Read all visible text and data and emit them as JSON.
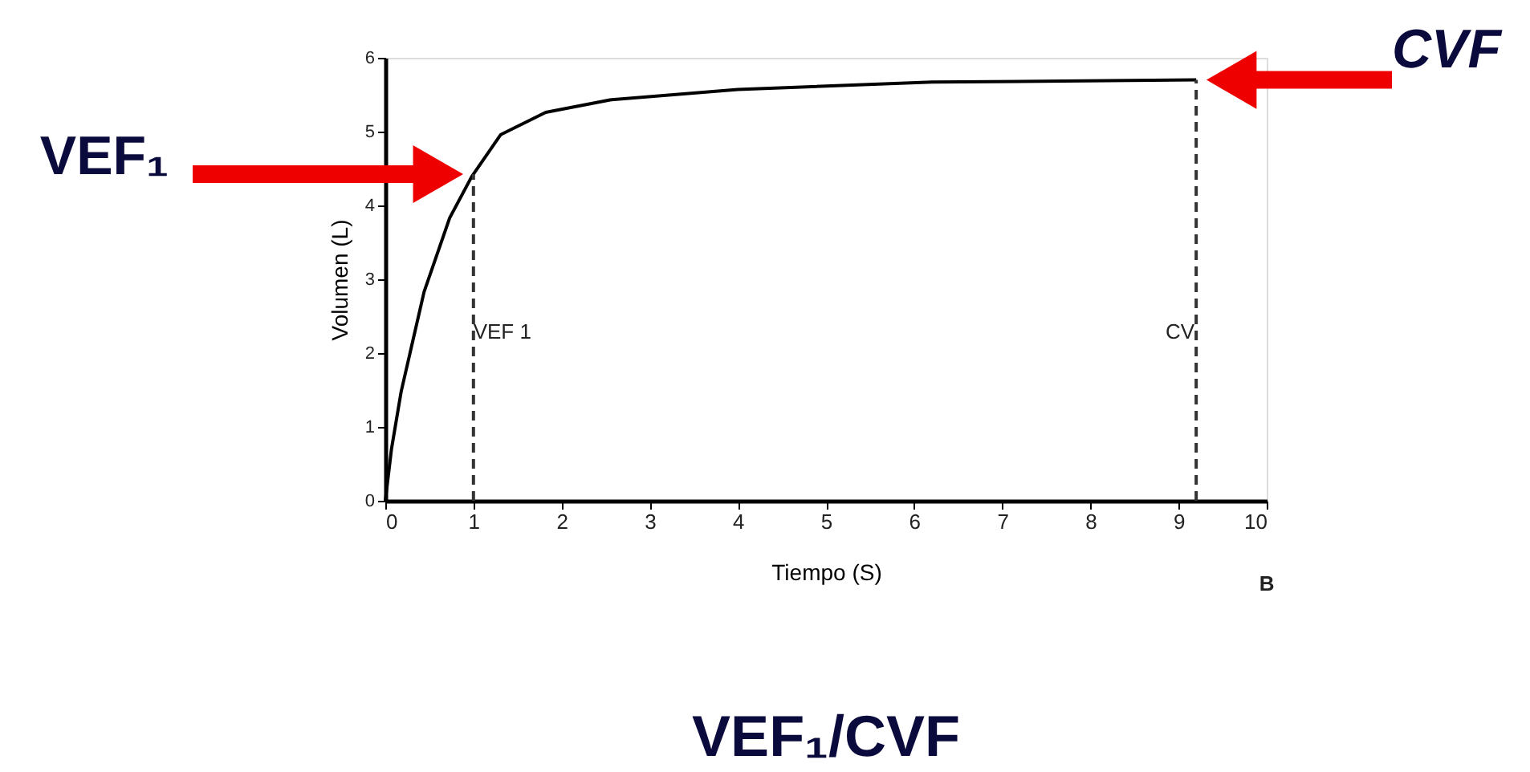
{
  "chart_data": {
    "type": "line",
    "title": "VEF₁/CVF",
    "xlabel": "Tiempo (S)",
    "ylabel": "Volumen (L)",
    "x": [
      0,
      0.07,
      0.18,
      0.44,
      0.73,
      0.98,
      1.31,
      1.82,
      2.55,
      4.0,
      6.2,
      9.2
    ],
    "series": [
      {
        "color": "#000000",
        "values": [
          0,
          0.7,
          1.48,
          2.83,
          3.83,
          4.39,
          4.96,
          5.26,
          5.43,
          5.57,
          5.67,
          5.7
        ]
      }
    ],
    "xlim": [
      0,
      10
    ],
    "ylim": [
      0,
      6
    ],
    "xticks": [
      0,
      1,
      2,
      3,
      4,
      5,
      6,
      7,
      8,
      9,
      10
    ],
    "yticks": [
      0,
      1,
      2,
      3,
      4,
      5,
      6
    ],
    "grid": false,
    "marker": "none",
    "line_style": "solid",
    "ref_lines": [
      {
        "axis": "x",
        "value": 1,
        "label": "VEF 1",
        "line_style": "dashed",
        "color": "#333333"
      },
      {
        "axis": "x",
        "value": 9.2,
        "label": "CV",
        "line_style": "dashed",
        "color": "#333333"
      }
    ],
    "annotations": [
      "VEF₁",
      "CVF",
      "B"
    ]
  }
}
